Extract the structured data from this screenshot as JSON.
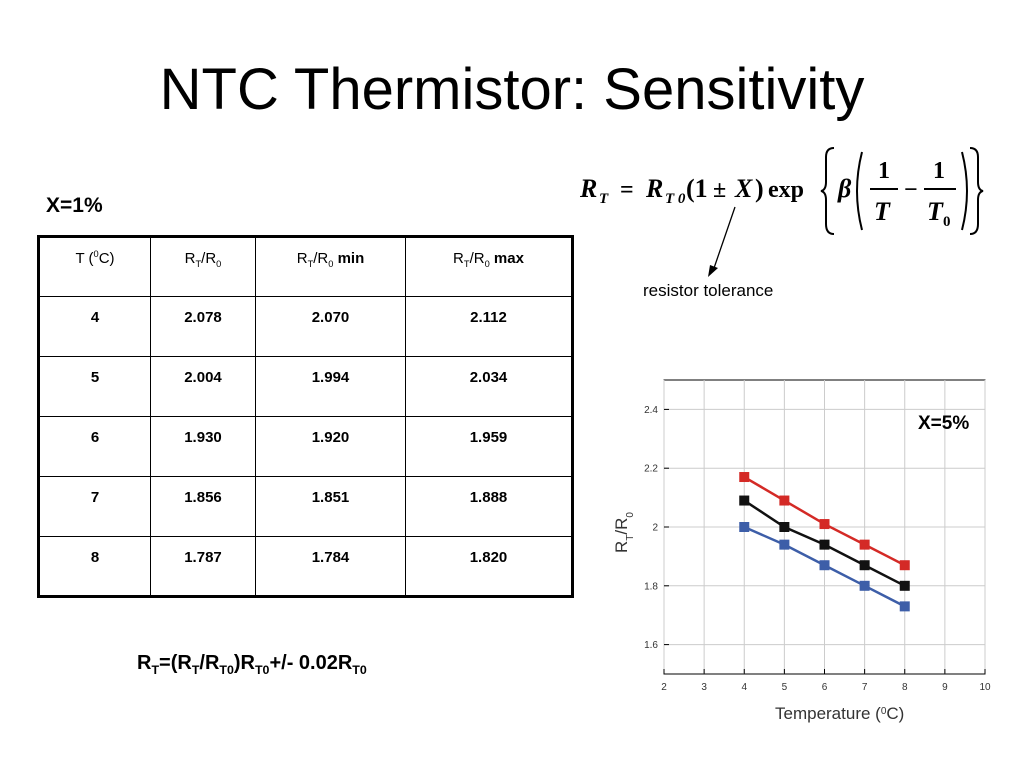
{
  "slide": {
    "title": "NTC Thermistor: Sensitivity",
    "x_label_table": "X=1%",
    "tolerance_label": "resistor tolerance"
  },
  "table": {
    "headers": [
      {
        "main": "T (",
        "sup": "0",
        "tail": "C)"
      },
      {
        "r": "R",
        "rs": "T",
        "slash": "/R",
        "zs": "0",
        "tail": ""
      },
      {
        "r": "R",
        "rs": "T",
        "slash": "/R",
        "zs": "0",
        "tail": " min"
      },
      {
        "r": "R",
        "rs": "T",
        "slash": "/R",
        "zs": "0",
        "tail": " max"
      }
    ],
    "rows": [
      [
        "4",
        "2.078",
        "2.070",
        "2.112"
      ],
      [
        "5",
        "2.004",
        "1.994",
        "2.034"
      ],
      [
        "6",
        "1.930",
        "1.920",
        "1.959"
      ],
      [
        "7",
        "1.856",
        "1.851",
        "1.888"
      ],
      [
        "8",
        "1.787",
        "1.784",
        "1.820"
      ]
    ]
  },
  "bottom_formula": {
    "p1": "R",
    "s1": "T",
    "p2": "=(R",
    "s2": "T",
    "p3": "/R",
    "s3": "T0",
    "p4": ")R",
    "s4": "T0",
    "p5": "+/- 0.02R",
    "s5": "T0"
  },
  "equation": {
    "lhs": "R",
    "lhs_sub": "T",
    "eq": "=",
    "r0": "R",
    "r0_sub": "T 0",
    "paren_open": "(1",
    "pm": "±",
    "x": "X",
    "paren_close": ")",
    "exp": "exp",
    "beta": "β",
    "one_a": "1",
    "t": "T",
    "minus": "−",
    "one_b": "1",
    "t0": "T",
    "t0_sub": "0"
  },
  "chart_data": {
    "type": "line",
    "title": "X=5%",
    "xlabel": "Temperature (",
    "xlabel_sup": "0",
    "xlabel_tail": "C)",
    "ylabel": "R",
    "ylabel_sub1": "T",
    "ylabel_mid": "/R",
    "ylabel_sub2": "0",
    "xlim": [
      2,
      10
    ],
    "ylim": [
      1.5,
      2.5
    ],
    "xticks": [
      2,
      3,
      4,
      5,
      6,
      7,
      8,
      9,
      10
    ],
    "yticks": [
      1.6,
      1.8,
      2,
      2.2,
      2.4
    ],
    "ytick_labels": [
      "1.6",
      "1.8",
      "2",
      "2.2",
      "2.4"
    ],
    "grid": true,
    "series": [
      {
        "color": "#d42a26",
        "x": [
          4,
          5,
          6,
          7,
          8
        ],
        "y": [
          2.17,
          2.09,
          2.01,
          1.94,
          1.87
        ]
      },
      {
        "color": "#111111",
        "x": [
          4,
          5,
          6,
          7,
          8
        ],
        "y": [
          2.09,
          2.0,
          1.94,
          1.87,
          1.8
        ]
      },
      {
        "color": "#3d5ea8",
        "x": [
          4,
          5,
          6,
          7,
          8
        ],
        "y": [
          2.0,
          1.94,
          1.87,
          1.8,
          1.73
        ]
      }
    ]
  }
}
